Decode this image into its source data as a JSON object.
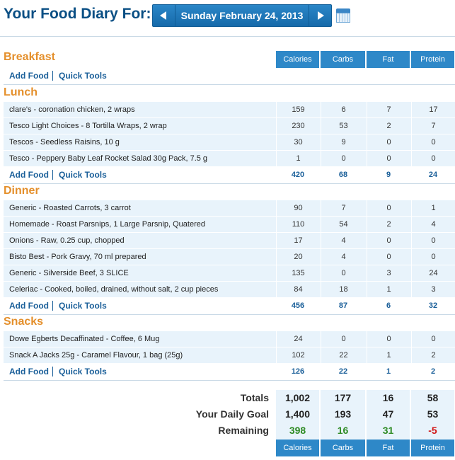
{
  "header": {
    "title": "Your Food Diary For:",
    "date": "Sunday February 24, 2013"
  },
  "columns": [
    "Calories",
    "Carbs",
    "Fat",
    "Protein"
  ],
  "links": {
    "add_food": "Add Food",
    "quick_tools": "Quick Tools"
  },
  "meals": {
    "breakfast": {
      "title": "Breakfast",
      "items": []
    },
    "lunch": {
      "title": "Lunch",
      "items": [
        {
          "name": "clare's - coronation chicken, 2 wraps",
          "calories": "159",
          "carbs": "6",
          "fat": "7",
          "protein": "17"
        },
        {
          "name": "Tesco Light Choices - 8 Tortilla Wraps, 2 wrap",
          "calories": "230",
          "carbs": "53",
          "fat": "2",
          "protein": "7"
        },
        {
          "name": "Tescos - Seedless Raisins, 10 g",
          "calories": "30",
          "carbs": "9",
          "fat": "0",
          "protein": "0"
        },
        {
          "name": "Tesco - Peppery Baby Leaf Rocket Salad 30g Pack, 7.5 g",
          "calories": "1",
          "carbs": "0",
          "fat": "0",
          "protein": "0"
        }
      ],
      "totals": {
        "calories": "420",
        "carbs": "68",
        "fat": "9",
        "protein": "24"
      }
    },
    "dinner": {
      "title": "Dinner",
      "items": [
        {
          "name": "Generic - Roasted Carrots, 3 carrot",
          "calories": "90",
          "carbs": "7",
          "fat": "0",
          "protein": "1"
        },
        {
          "name": "Homemade - Roast Parsnips, 1 Large Parsnip, Quatered",
          "calories": "110",
          "carbs": "54",
          "fat": "2",
          "protein": "4"
        },
        {
          "name": "Onions - Raw, 0.25 cup, chopped",
          "calories": "17",
          "carbs": "4",
          "fat": "0",
          "protein": "0"
        },
        {
          "name": "Bisto Best - Pork Gravy, 70 ml prepared",
          "calories": "20",
          "carbs": "4",
          "fat": "0",
          "protein": "0"
        },
        {
          "name": "Generic - Silverside Beef, 3 SLICE",
          "calories": "135",
          "carbs": "0",
          "fat": "3",
          "protein": "24"
        },
        {
          "name": "Celeriac - Cooked, boiled, drained, without salt, 2 cup pieces",
          "calories": "84",
          "carbs": "18",
          "fat": "1",
          "protein": "3"
        }
      ],
      "totals": {
        "calories": "456",
        "carbs": "87",
        "fat": "6",
        "protein": "32"
      }
    },
    "snacks": {
      "title": "Snacks",
      "items": [
        {
          "name": "Dowe Egberts Decaffinated - Coffee, 6 Mug",
          "calories": "24",
          "carbs": "0",
          "fat": "0",
          "protein": "0"
        },
        {
          "name": "Snack A Jacks 25g - Caramel Flavour, 1 bag (25g)",
          "calories": "102",
          "carbs": "22",
          "fat": "1",
          "protein": "2"
        }
      ],
      "totals": {
        "calories": "126",
        "carbs": "22",
        "fat": "1",
        "protein": "2"
      }
    }
  },
  "summary": {
    "totals": {
      "label": "Totals",
      "calories": "1,002",
      "carbs": "177",
      "fat": "16",
      "protein": "58"
    },
    "goal": {
      "label": "Your Daily Goal",
      "calories": "1,400",
      "carbs": "193",
      "fat": "47",
      "protein": "53"
    },
    "remaining": {
      "label": "Remaining",
      "calories": "398",
      "carbs": "16",
      "fat": "31",
      "protein": "-5"
    }
  },
  "colors": {
    "accent": "#2e88c8",
    "meal_title": "#e48f2b",
    "link": "#1a5f99",
    "good": "#2e8b24",
    "bad": "#d21515"
  }
}
